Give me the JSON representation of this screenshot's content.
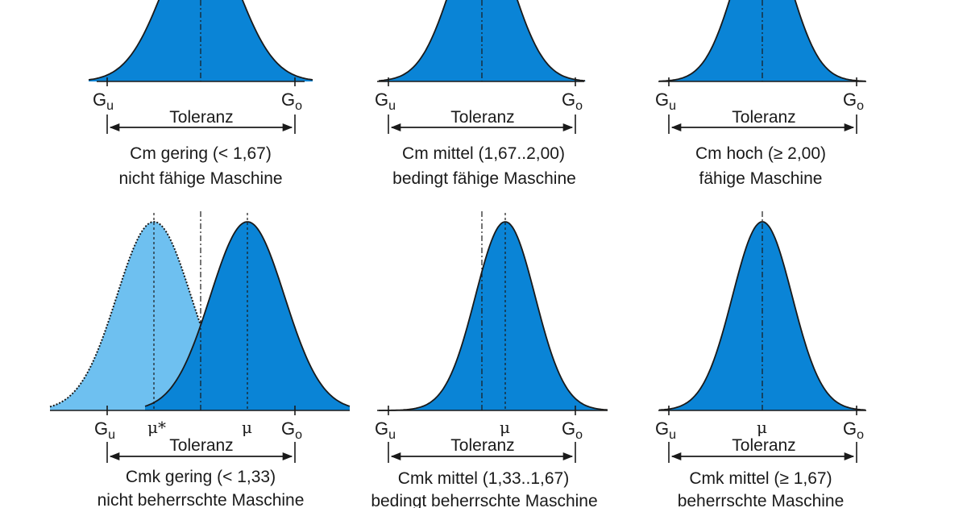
{
  "colors": {
    "curve_fill": "#0a84d6",
    "shifted_fill": "#6ec0f0",
    "stroke": "#1a1a1a"
  },
  "labels": {
    "g": "G",
    "lower_sub": "u",
    "upper_sub": "o",
    "tolerance": "Toleranz",
    "mu": "μ",
    "mu_star": "μ*"
  },
  "panels": [
    {
      "caption1": "Cm gering (< 1,67)",
      "caption2": "nicht fähige Maschine"
    },
    {
      "caption1": "Cm mittel (1,67..2,00)",
      "caption2": "bedingt fähige Maschine"
    },
    {
      "caption1": "Cm hoch (≥ 2,00)",
      "caption2": "fähige Maschine"
    },
    {
      "caption1": "Cmk gering (< 1,33)",
      "caption2": "nicht beherrschte Maschine"
    },
    {
      "caption1": "Cmk mittel (1,33..1,67)",
      "caption2": "bedingt beherrschte Maschine"
    },
    {
      "caption1": "Cmk mittel (≥ 1,67)",
      "caption2": "beherrschte Maschine"
    }
  ]
}
